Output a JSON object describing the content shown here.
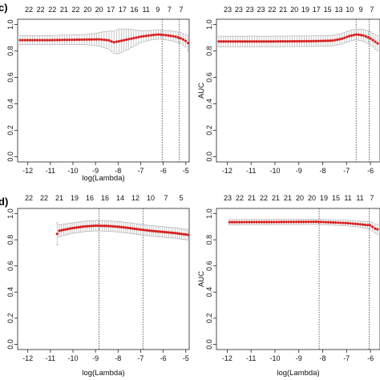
{
  "figure": {
    "panel_tags": [
      "c)",
      "d)"
    ]
  },
  "style": {
    "point_color": "#d62020",
    "errorbar_color": "#a8a8a8",
    "vline_color": "#222222",
    "axis_color": "#222222"
  },
  "chart_data": [
    {
      "type": "scatter",
      "xlabel": "log(Lambda)",
      "ylabel": "",
      "xlim": [
        -12.45,
        -4.85
      ],
      "ylim": [
        -0.04,
        1.04
      ],
      "xticks": [
        -12,
        -11,
        -10,
        -9,
        -8,
        -7,
        -6,
        -5
      ],
      "yticks": [
        0.0,
        0.2,
        0.4,
        0.6,
        0.8,
        1.0
      ],
      "top_counts": [
        "22",
        "22",
        "22",
        "21",
        "22",
        "20",
        "20",
        "17",
        "17",
        "16",
        "11",
        "9",
        "7",
        "7"
      ],
      "vlines": [
        -6.05,
        -5.3
      ],
      "x_range": [
        -12.45,
        -4.9
      ],
      "y_points": [
        [
          -12.45,
          0.882
        ],
        [
          -11.0,
          0.882
        ],
        [
          -9.5,
          0.886
        ],
        [
          -8.8,
          0.888
        ],
        [
          -8.4,
          0.88
        ],
        [
          -8.2,
          0.865
        ],
        [
          -8.0,
          0.872
        ],
        [
          -7.5,
          0.89
        ],
        [
          -7.0,
          0.908
        ],
        [
          -6.6,
          0.918
        ],
        [
          -6.2,
          0.925
        ],
        [
          -5.8,
          0.918
        ],
        [
          -5.5,
          0.91
        ],
        [
          -5.2,
          0.895
        ],
        [
          -5.0,
          0.875
        ],
        [
          -4.9,
          0.86
        ]
      ],
      "err_points": [
        [
          -12.45,
          0.035
        ],
        [
          -11.0,
          0.035
        ],
        [
          -9.5,
          0.038
        ],
        [
          -9.0,
          0.045
        ],
        [
          -8.5,
          0.065
        ],
        [
          -8.0,
          0.095
        ],
        [
          -7.5,
          0.075
        ],
        [
          -7.0,
          0.045
        ],
        [
          -6.5,
          0.035
        ],
        [
          -6.0,
          0.035
        ],
        [
          -5.5,
          0.038
        ],
        [
          -5.0,
          0.045
        ],
        [
          -4.9,
          0.06
        ]
      ],
      "n_points": 70
    },
    {
      "type": "scatter",
      "xlabel": "",
      "ylabel": "AUC",
      "xlim": [
        -12.45,
        -5.6
      ],
      "ylim": [
        -0.04,
        1.04
      ],
      "xticks": [
        -12,
        -11,
        -10,
        -9,
        -8,
        -7,
        -6
      ],
      "yticks": [
        0.0,
        0.2,
        0.4,
        0.6,
        0.8,
        1.0
      ],
      "top_counts": [
        "23",
        "23",
        "23",
        "23",
        "22",
        "21",
        "20",
        "19",
        "17",
        "15",
        "13",
        "10",
        "9",
        "7"
      ],
      "vlines": [
        -6.6,
        -6.05
      ],
      "x_range": [
        -12.45,
        -5.6
      ],
      "y_points": [
        [
          -12.45,
          0.872
        ],
        [
          -10.0,
          0.872
        ],
        [
          -8.5,
          0.874
        ],
        [
          -7.6,
          0.878
        ],
        [
          -7.2,
          0.892
        ],
        [
          -6.9,
          0.912
        ],
        [
          -6.6,
          0.925
        ],
        [
          -6.3,
          0.918
        ],
        [
          -6.0,
          0.895
        ],
        [
          -5.8,
          0.87
        ],
        [
          -5.6,
          0.845
        ]
      ],
      "err_points": [
        [
          -12.45,
          0.04
        ],
        [
          -9.0,
          0.04
        ],
        [
          -7.5,
          0.04
        ],
        [
          -6.6,
          0.04
        ],
        [
          -6.0,
          0.05
        ],
        [
          -5.6,
          0.06
        ]
      ],
      "n_points": 70
    },
    {
      "type": "scatter",
      "xlabel": "log(Lambda)",
      "ylabel": "",
      "xlim": [
        -12.45,
        -4.85
      ],
      "ylim": [
        -0.04,
        1.04
      ],
      "xticks": [
        -12,
        -11,
        -10,
        -9,
        -8,
        -7,
        -6,
        -5
      ],
      "yticks": [
        0.0,
        0.2,
        0.4,
        0.6,
        0.8,
        1.0
      ],
      "top_counts": [
        "22",
        "22",
        "21",
        "19",
        "16",
        "16",
        "14",
        "12",
        "10",
        "7",
        "5"
      ],
      "vlines": [
        -8.85,
        -6.9
      ],
      "x_range": [
        -10.7,
        -4.9
      ],
      "y_points": [
        [
          -10.7,
          0.845
        ],
        [
          -10.6,
          0.87
        ],
        [
          -10.3,
          0.88
        ],
        [
          -10.0,
          0.89
        ],
        [
          -9.5,
          0.902
        ],
        [
          -9.0,
          0.908
        ],
        [
          -8.5,
          0.906
        ],
        [
          -8.0,
          0.9
        ],
        [
          -7.5,
          0.89
        ],
        [
          -7.0,
          0.878
        ],
        [
          -6.5,
          0.868
        ],
        [
          -6.0,
          0.86
        ],
        [
          -5.5,
          0.852
        ],
        [
          -4.9,
          0.838
        ]
      ],
      "err_points": [
        [
          -10.7,
          0.085
        ],
        [
          -10.6,
          0.045
        ],
        [
          -10.0,
          0.04
        ],
        [
          -9.0,
          0.04
        ],
        [
          -8.0,
          0.04
        ],
        [
          -7.0,
          0.04
        ],
        [
          -6.0,
          0.04
        ],
        [
          -5.0,
          0.04
        ],
        [
          -4.9,
          0.04
        ]
      ],
      "n_points": 62
    },
    {
      "type": "scatter",
      "xlabel": "log(Lambda)",
      "ylabel": "AUC",
      "xlim": [
        -12.45,
        -5.6
      ],
      "ylim": [
        -0.04,
        1.04
      ],
      "xticks": [
        -12,
        -11,
        -10,
        -9,
        -8,
        -7,
        -6
      ],
      "yticks": [
        0.0,
        0.2,
        0.4,
        0.6,
        0.8,
        1.0
      ],
      "top_counts": [
        "23",
        "22",
        "21",
        "22",
        "21",
        "21",
        "20",
        "20",
        "19",
        "15",
        "11",
        "11",
        "7"
      ],
      "vlines": [
        -8.15,
        -6.05
      ],
      "x_range": [
        -11.9,
        -5.6
      ],
      "y_points": [
        [
          -11.9,
          0.935
        ],
        [
          -10.0,
          0.936
        ],
        [
          -9.0,
          0.937
        ],
        [
          -8.2,
          0.938
        ],
        [
          -7.5,
          0.932
        ],
        [
          -7.0,
          0.928
        ],
        [
          -6.5,
          0.92
        ],
        [
          -6.0,
          0.91
        ],
        [
          -5.8,
          0.885
        ],
        [
          -5.6,
          0.875
        ]
      ],
      "err_points": [
        [
          -11.9,
          0.02
        ],
        [
          -8.0,
          0.02
        ],
        [
          -6.5,
          0.022
        ],
        [
          -6.0,
          0.03
        ],
        [
          -5.6,
          0.04
        ]
      ],
      "n_points": 62
    }
  ]
}
